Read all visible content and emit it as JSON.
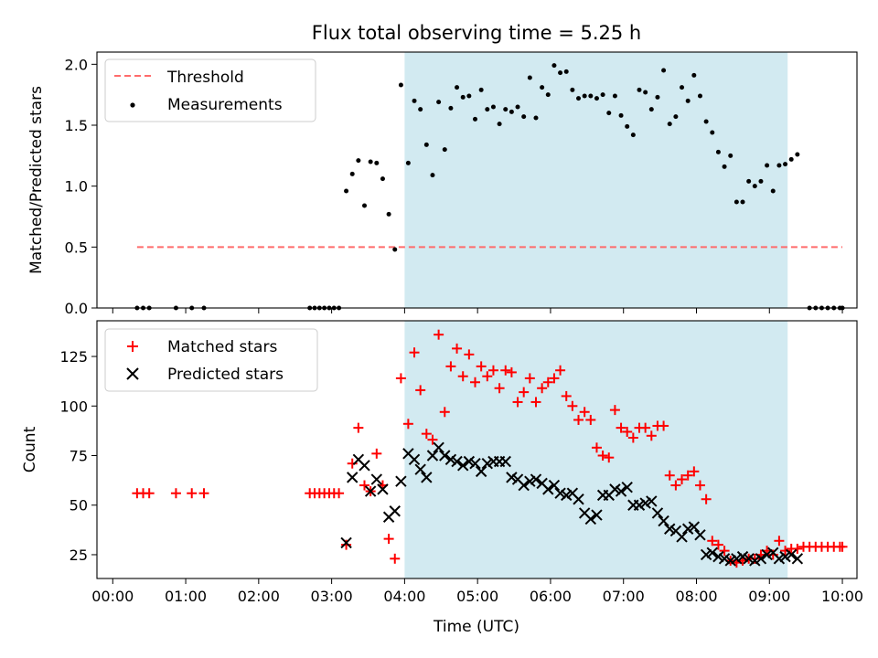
{
  "figure": {
    "title": "Flux total observing time = 5.25 h",
    "xlabel": "Time (UTC)"
  },
  "colors": {
    "shade": "#add8e6",
    "threshold": "#ff6b6b",
    "measurements": "#000000",
    "matched": "#ff0000",
    "predicted": "#000000"
  },
  "chart_data": [
    {
      "type": "scatter",
      "ylabel": "Matched/Predicted stars",
      "xlim": [
        "23:47",
        "10:12"
      ],
      "ylim": [
        0,
        2.1
      ],
      "xticks": [
        "00:00",
        "01:00",
        "02:00",
        "03:00",
        "04:00",
        "05:00",
        "06:00",
        "07:00",
        "08:00",
        "09:00",
        "10:00"
      ],
      "yticks": [
        "0.0",
        "0.5",
        "1.0",
        "1.5",
        "2.0"
      ],
      "shaded_span": [
        "04:00",
        "09:15"
      ],
      "legend": "top-left",
      "threshold": {
        "name": "Threshold",
        "y": 0.5,
        "x": [
          "00:20",
          "10:00"
        ]
      },
      "series": [
        {
          "name": "Measurements",
          "marker": "dot",
          "x": [
            "00:20",
            "00:25",
            "00:30",
            "00:52",
            "01:05",
            "01:15",
            "02:42",
            "02:46",
            "02:50",
            "02:54",
            "02:58",
            "03:02",
            "03:06",
            "03:12",
            "03:17",
            "03:22",
            "03:27",
            "03:32",
            "03:37",
            "03:42",
            "03:47",
            "03:52",
            "03:57",
            "04:03",
            "04:08",
            "04:13",
            "04:18",
            "04:23",
            "04:28",
            "04:33",
            "04:38",
            "04:43",
            "04:48",
            "04:53",
            "04:58",
            "05:03",
            "05:08",
            "05:13",
            "05:18",
            "05:23",
            "05:28",
            "05:33",
            "05:38",
            "05:43",
            "05:48",
            "05:53",
            "05:58",
            "06:03",
            "06:08",
            "06:13",
            "06:18",
            "06:23",
            "06:28",
            "06:33",
            "06:38",
            "06:43",
            "06:48",
            "06:53",
            "06:58",
            "07:03",
            "07:08",
            "07:13",
            "07:18",
            "07:23",
            "07:28",
            "07:33",
            "07:38",
            "07:43",
            "07:48",
            "07:53",
            "07:58",
            "08:03",
            "08:08",
            "08:13",
            "08:18",
            "08:23",
            "08:28",
            "08:33",
            "08:38",
            "08:43",
            "08:48",
            "08:53",
            "08:58",
            "09:03",
            "09:08",
            "09:13",
            "09:18",
            "09:23",
            "09:33",
            "09:38",
            "09:43",
            "09:48",
            "09:53",
            "09:58",
            "10:00"
          ],
          "y": [
            0,
            0,
            0,
            0,
            0,
            0,
            0,
            0,
            0,
            0,
            0,
            0,
            0,
            0.96,
            1.1,
            1.21,
            0.84,
            1.2,
            1.19,
            1.06,
            0.77,
            0.48,
            1.83,
            1.19,
            1.7,
            1.63,
            1.34,
            1.09,
            1.69,
            1.3,
            1.64,
            1.81,
            1.73,
            1.74,
            1.55,
            1.79,
            1.63,
            1.65,
            1.51,
            1.63,
            1.61,
            1.65,
            1.57,
            1.89,
            1.56,
            1.81,
            1.75,
            1.99,
            1.93,
            1.94,
            1.79,
            1.72,
            1.74,
            1.74,
            1.72,
            1.75,
            1.6,
            1.74,
            1.58,
            1.49,
            1.42,
            1.79,
            1.77,
            1.63,
            1.73,
            1.95,
            1.51,
            1.57,
            1.81,
            1.7,
            1.91,
            1.74,
            1.53,
            1.44,
            1.28,
            1.16,
            1.25,
            0.87,
            0.87,
            1.04,
            1.0,
            1.04,
            1.17,
            0.96,
            1.17,
            1.18,
            1.22,
            1.26,
            0,
            0,
            0,
            0,
            0,
            0,
            0
          ]
        }
      ]
    },
    {
      "type": "scatter",
      "ylabel": "Count",
      "xlim": [
        "23:47",
        "10:12"
      ],
      "ylim": [
        13,
        143
      ],
      "xticks": [
        "00:00",
        "01:00",
        "02:00",
        "03:00",
        "04:00",
        "05:00",
        "06:00",
        "07:00",
        "08:00",
        "09:00",
        "10:00"
      ],
      "yticks": [
        "25",
        "50",
        "75",
        "100",
        "125"
      ],
      "shaded_span": [
        "04:00",
        "09:15"
      ],
      "legend": "top-left",
      "series": [
        {
          "name": "Matched stars",
          "marker": "plus",
          "x": [
            "00:20",
            "00:25",
            "00:30",
            "00:52",
            "01:05",
            "01:15",
            "02:42",
            "02:46",
            "02:50",
            "02:54",
            "02:58",
            "03:02",
            "03:06",
            "03:12",
            "03:17",
            "03:22",
            "03:27",
            "03:32",
            "03:37",
            "03:42",
            "03:47",
            "03:52",
            "03:57",
            "04:03",
            "04:08",
            "04:13",
            "04:18",
            "04:23",
            "04:28",
            "04:33",
            "04:38",
            "04:43",
            "04:48",
            "04:53",
            "04:58",
            "05:03",
            "05:08",
            "05:13",
            "05:18",
            "05:23",
            "05:28",
            "05:33",
            "05:38",
            "05:43",
            "05:48",
            "05:53",
            "05:58",
            "06:03",
            "06:08",
            "06:13",
            "06:18",
            "06:23",
            "06:28",
            "06:33",
            "06:38",
            "06:43",
            "06:48",
            "06:53",
            "06:58",
            "07:03",
            "07:08",
            "07:13",
            "07:18",
            "07:23",
            "07:28",
            "07:33",
            "07:38",
            "07:43",
            "07:48",
            "07:53",
            "07:58",
            "08:03",
            "08:08",
            "08:13",
            "08:18",
            "08:23",
            "08:28",
            "08:33",
            "08:38",
            "08:43",
            "08:48",
            "08:53",
            "08:58",
            "09:03",
            "09:08",
            "09:13",
            "09:18",
            "09:23",
            "09:28",
            "09:33",
            "09:38",
            "09:43",
            "09:48",
            "09:53",
            "09:58",
            "10:00"
          ],
          "y": [
            56,
            56,
            56,
            56,
            56,
            56,
            56,
            56,
            56,
            56,
            56,
            56,
            56,
            30,
            71,
            89,
            60,
            57,
            76,
            60,
            33,
            23,
            114,
            91,
            127,
            108,
            86,
            83,
            136,
            97,
            120,
            129,
            115,
            126,
            112,
            120,
            115,
            118,
            109,
            118,
            117,
            102,
            107,
            114,
            102,
            109,
            112,
            114,
            118,
            105,
            100,
            93,
            97,
            93,
            79,
            75,
            74,
            98,
            89,
            87,
            84,
            89,
            89,
            85,
            90,
            90,
            65,
            60,
            63,
            65,
            67,
            60,
            53,
            32,
            30,
            27,
            22,
            21,
            22,
            23,
            23,
            25,
            27,
            25,
            32,
            27,
            28,
            28,
            29,
            29,
            29,
            29,
            29,
            29,
            29,
            29
          ]
        },
        {
          "name": "Predicted stars",
          "marker": "x",
          "x": [
            "03:12",
            "03:17",
            "03:22",
            "03:27",
            "03:32",
            "03:37",
            "03:42",
            "03:47",
            "03:52",
            "03:57",
            "04:03",
            "04:08",
            "04:13",
            "04:18",
            "04:23",
            "04:28",
            "04:33",
            "04:38",
            "04:43",
            "04:48",
            "04:53",
            "04:58",
            "05:03",
            "05:08",
            "05:13",
            "05:18",
            "05:23",
            "05:28",
            "05:33",
            "05:38",
            "05:43",
            "05:48",
            "05:53",
            "05:58",
            "06:03",
            "06:08",
            "06:13",
            "06:18",
            "06:23",
            "06:28",
            "06:33",
            "06:38",
            "06:43",
            "06:48",
            "06:53",
            "06:58",
            "07:03",
            "07:08",
            "07:13",
            "07:18",
            "07:23",
            "07:28",
            "07:33",
            "07:38",
            "07:43",
            "07:48",
            "07:53",
            "07:58",
            "08:03",
            "08:08",
            "08:13",
            "08:18",
            "08:23",
            "08:28",
            "08:33",
            "08:38",
            "08:43",
            "08:48",
            "08:53",
            "08:58",
            "09:03",
            "09:08",
            "09:13",
            "09:18",
            "09:23"
          ],
          "y": [
            31,
            64,
            73,
            70,
            57,
            63,
            58,
            44,
            47,
            62,
            76,
            73,
            68,
            64,
            75,
            79,
            75,
            73,
            72,
            70,
            72,
            71,
            67,
            71,
            72,
            72,
            72,
            64,
            63,
            60,
            62,
            63,
            61,
            58,
            60,
            56,
            55,
            56,
            53,
            46,
            43,
            45,
            55,
            55,
            58,
            57,
            59,
            50,
            50,
            51,
            52,
            46,
            42,
            38,
            37,
            34,
            38,
            39,
            35,
            25,
            26,
            24,
            23,
            22,
            23,
            24,
            23,
            22,
            23,
            25,
            26,
            23,
            24,
            25,
            23
          ]
        }
      ]
    }
  ]
}
